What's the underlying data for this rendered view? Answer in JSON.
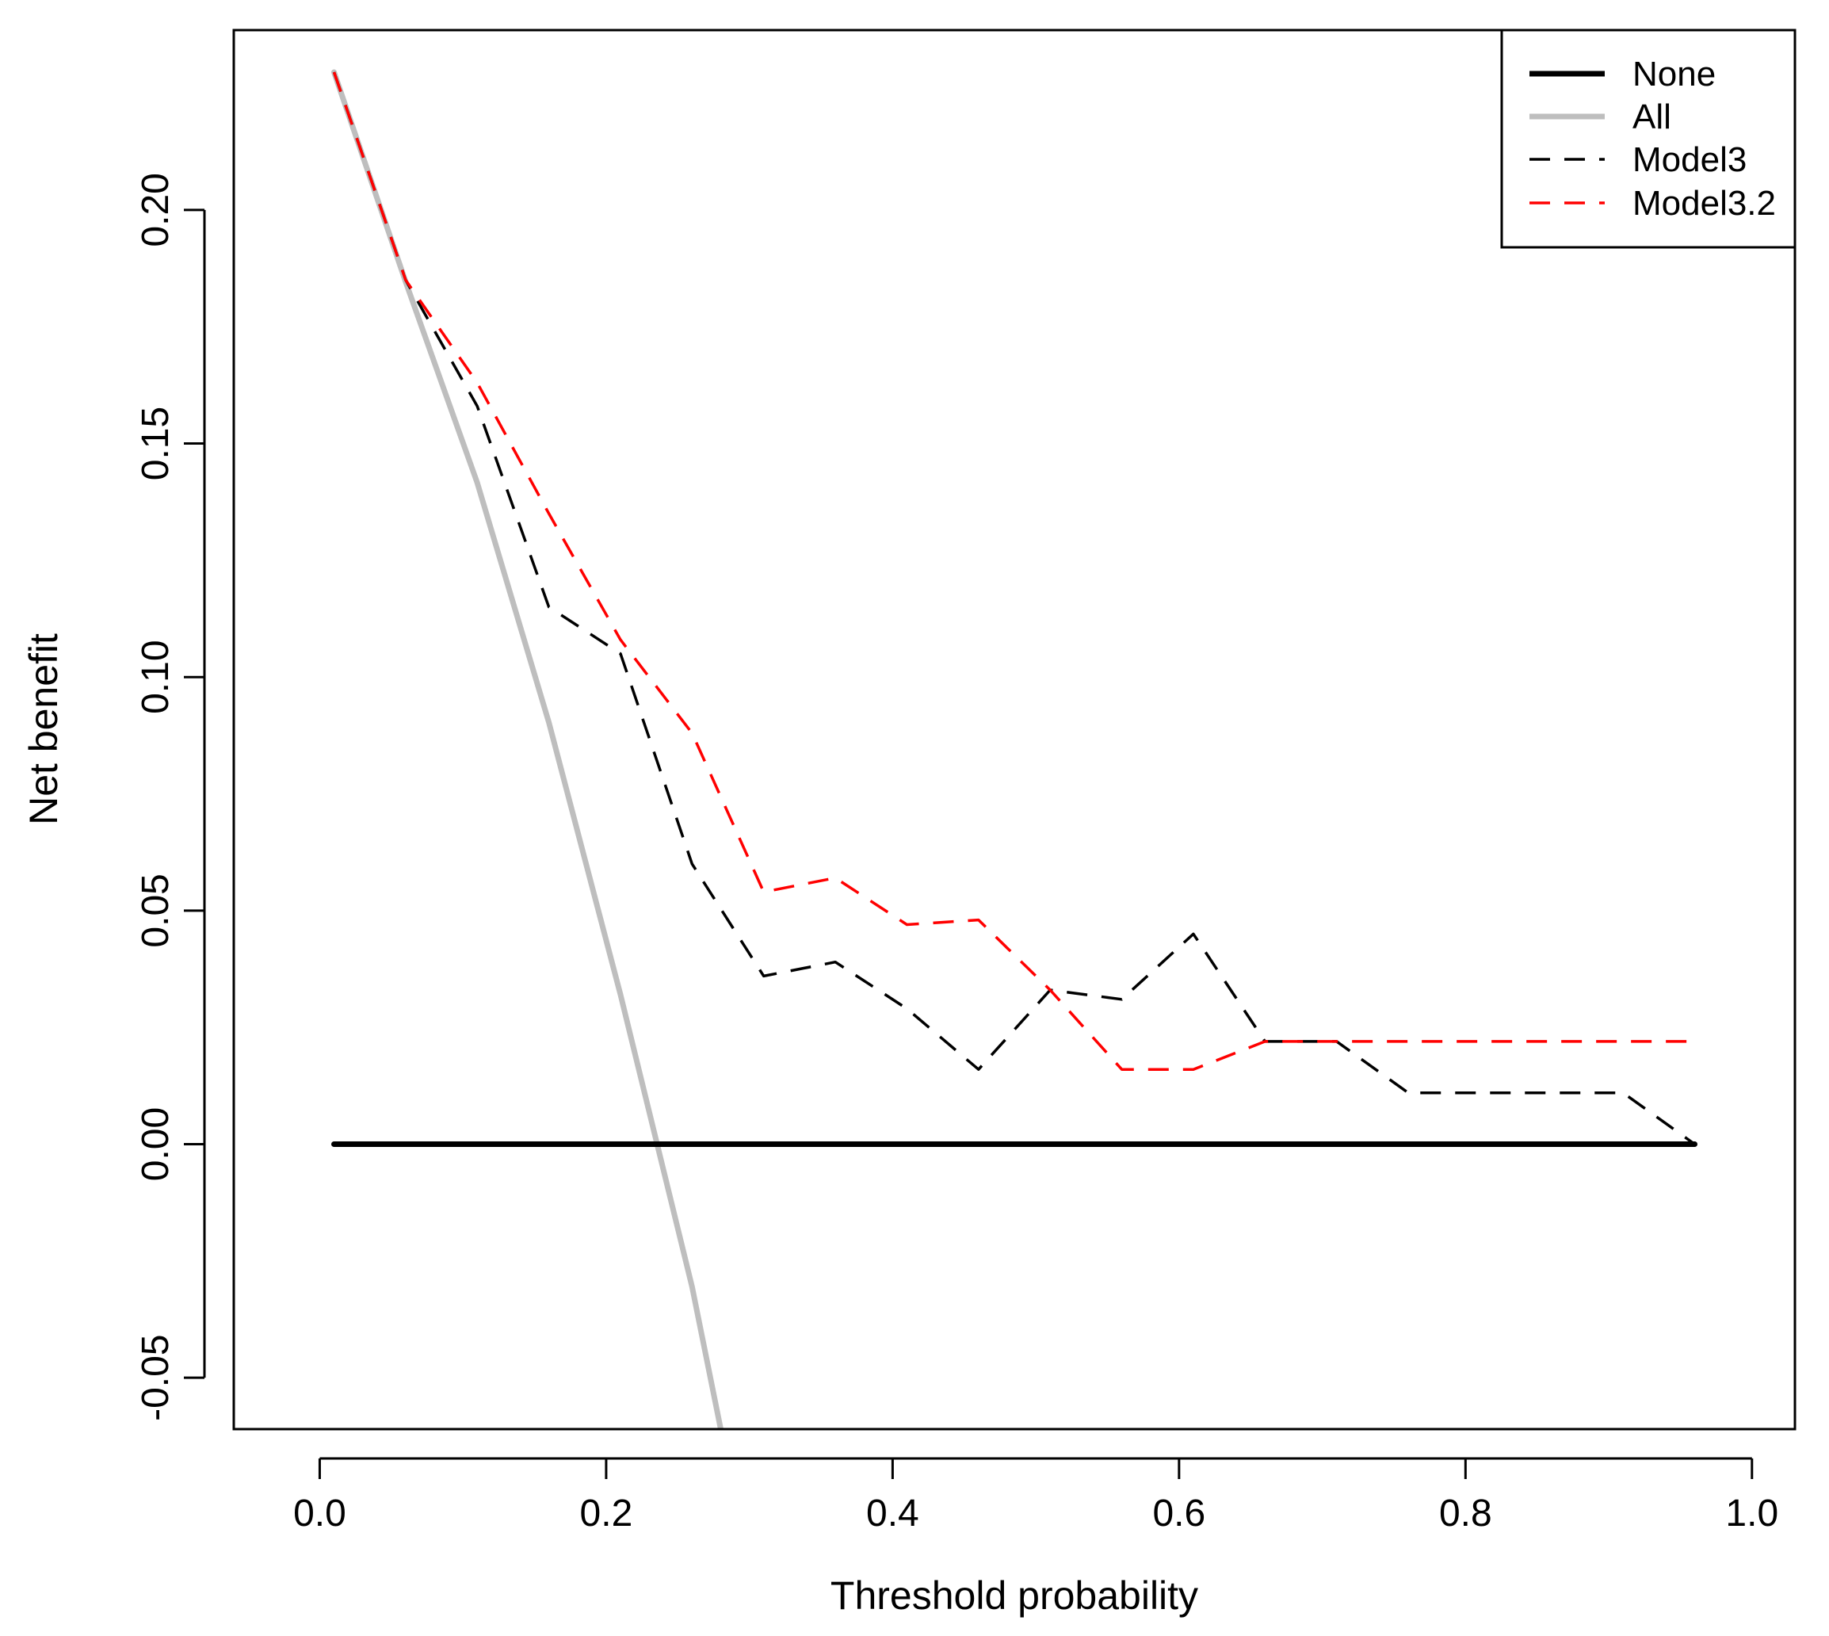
{
  "chart_data": {
    "type": "line",
    "title": "",
    "xlabel": "Threshold probability",
    "ylabel": "Net benefit",
    "xlim": [
      -0.06,
      1.03
    ],
    "ylim": [
      -0.061,
      0.2385
    ],
    "xticks": [
      0.0,
      0.2,
      0.4,
      0.6,
      0.8,
      1.0
    ],
    "xtick_labels": [
      "0.0",
      "0.2",
      "0.4",
      "0.6",
      "0.8",
      "1.0"
    ],
    "yticks": [
      -0.05,
      0.0,
      0.05,
      0.1,
      0.15,
      0.2
    ],
    "ytick_labels": [
      "-0.05",
      "0.00",
      "0.05",
      "0.10",
      "0.15",
      "0.20"
    ],
    "grid": false,
    "legend_position": "top-right",
    "legend": [
      "None",
      "All",
      "Model3",
      "Model3.2"
    ],
    "series": [
      {
        "name": "None",
        "color": "#000000",
        "style": "solid-thick",
        "x": [
          0.01,
          0.96
        ],
        "y": [
          0.0,
          0.0
        ]
      },
      {
        "name": "All",
        "color": "#bebebe",
        "style": "solid-thick",
        "x": [
          0.01,
          0.06,
          0.11,
          0.16,
          0.21,
          0.26,
          0.28
        ],
        "y": [
          0.2295,
          0.1846,
          0.1416,
          0.0903,
          0.032,
          -0.0305,
          -0.061
        ]
      },
      {
        "name": "Model3",
        "color": "#000000",
        "style": "dashed",
        "x": [
          0.01,
          0.06,
          0.11,
          0.16,
          0.21,
          0.26,
          0.31,
          0.36,
          0.41,
          0.46,
          0.51,
          0.56,
          0.61,
          0.66,
          0.71,
          0.76,
          0.81,
          0.86,
          0.91,
          0.96
        ],
        "y": [
          0.2295,
          0.185,
          0.158,
          0.115,
          0.105,
          0.06,
          0.036,
          0.039,
          0.029,
          0.016,
          0.033,
          0.031,
          0.045,
          0.022,
          0.022,
          0.011,
          0.011,
          0.011,
          0.011,
          0.0
        ]
      },
      {
        "name": "Model3.2",
        "color": "#ff0000",
        "style": "dashed",
        "x": [
          0.01,
          0.06,
          0.11,
          0.16,
          0.21,
          0.26,
          0.31,
          0.36,
          0.41,
          0.46,
          0.51,
          0.56,
          0.61,
          0.66,
          0.71,
          0.76,
          0.81,
          0.86,
          0.91,
          0.96
        ],
        "y": [
          0.2295,
          0.185,
          0.163,
          0.135,
          0.108,
          0.088,
          0.054,
          0.057,
          0.047,
          0.048,
          0.033,
          0.016,
          0.016,
          0.022,
          0.022,
          0.022,
          0.022,
          0.022,
          0.022,
          0.022
        ]
      }
    ]
  }
}
